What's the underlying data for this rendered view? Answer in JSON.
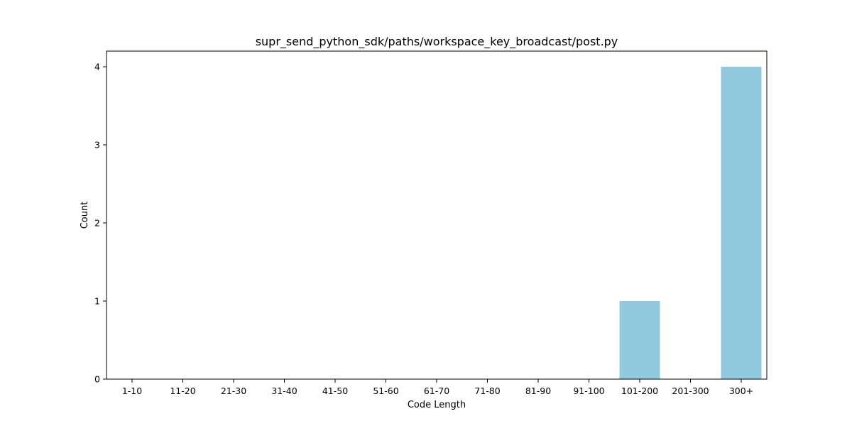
{
  "chart_data": {
    "type": "bar",
    "title": "supr_send_python_sdk/paths/workspace_key_broadcast/post.py",
    "xlabel": "Code Length",
    "ylabel": "Count",
    "categories": [
      "1-10",
      "11-20",
      "21-30",
      "31-40",
      "41-50",
      "51-60",
      "61-70",
      "71-80",
      "81-90",
      "91-100",
      "101-200",
      "201-300",
      "300+"
    ],
    "values": [
      0,
      0,
      0,
      0,
      0,
      0,
      0,
      0,
      0,
      0,
      1,
      0,
      4
    ],
    "ylim": [
      0,
      4.2
    ],
    "yticks": [
      0,
      1,
      2,
      3,
      4
    ],
    "bar_color": "#92c9dd",
    "grid": false,
    "legend": "none"
  }
}
